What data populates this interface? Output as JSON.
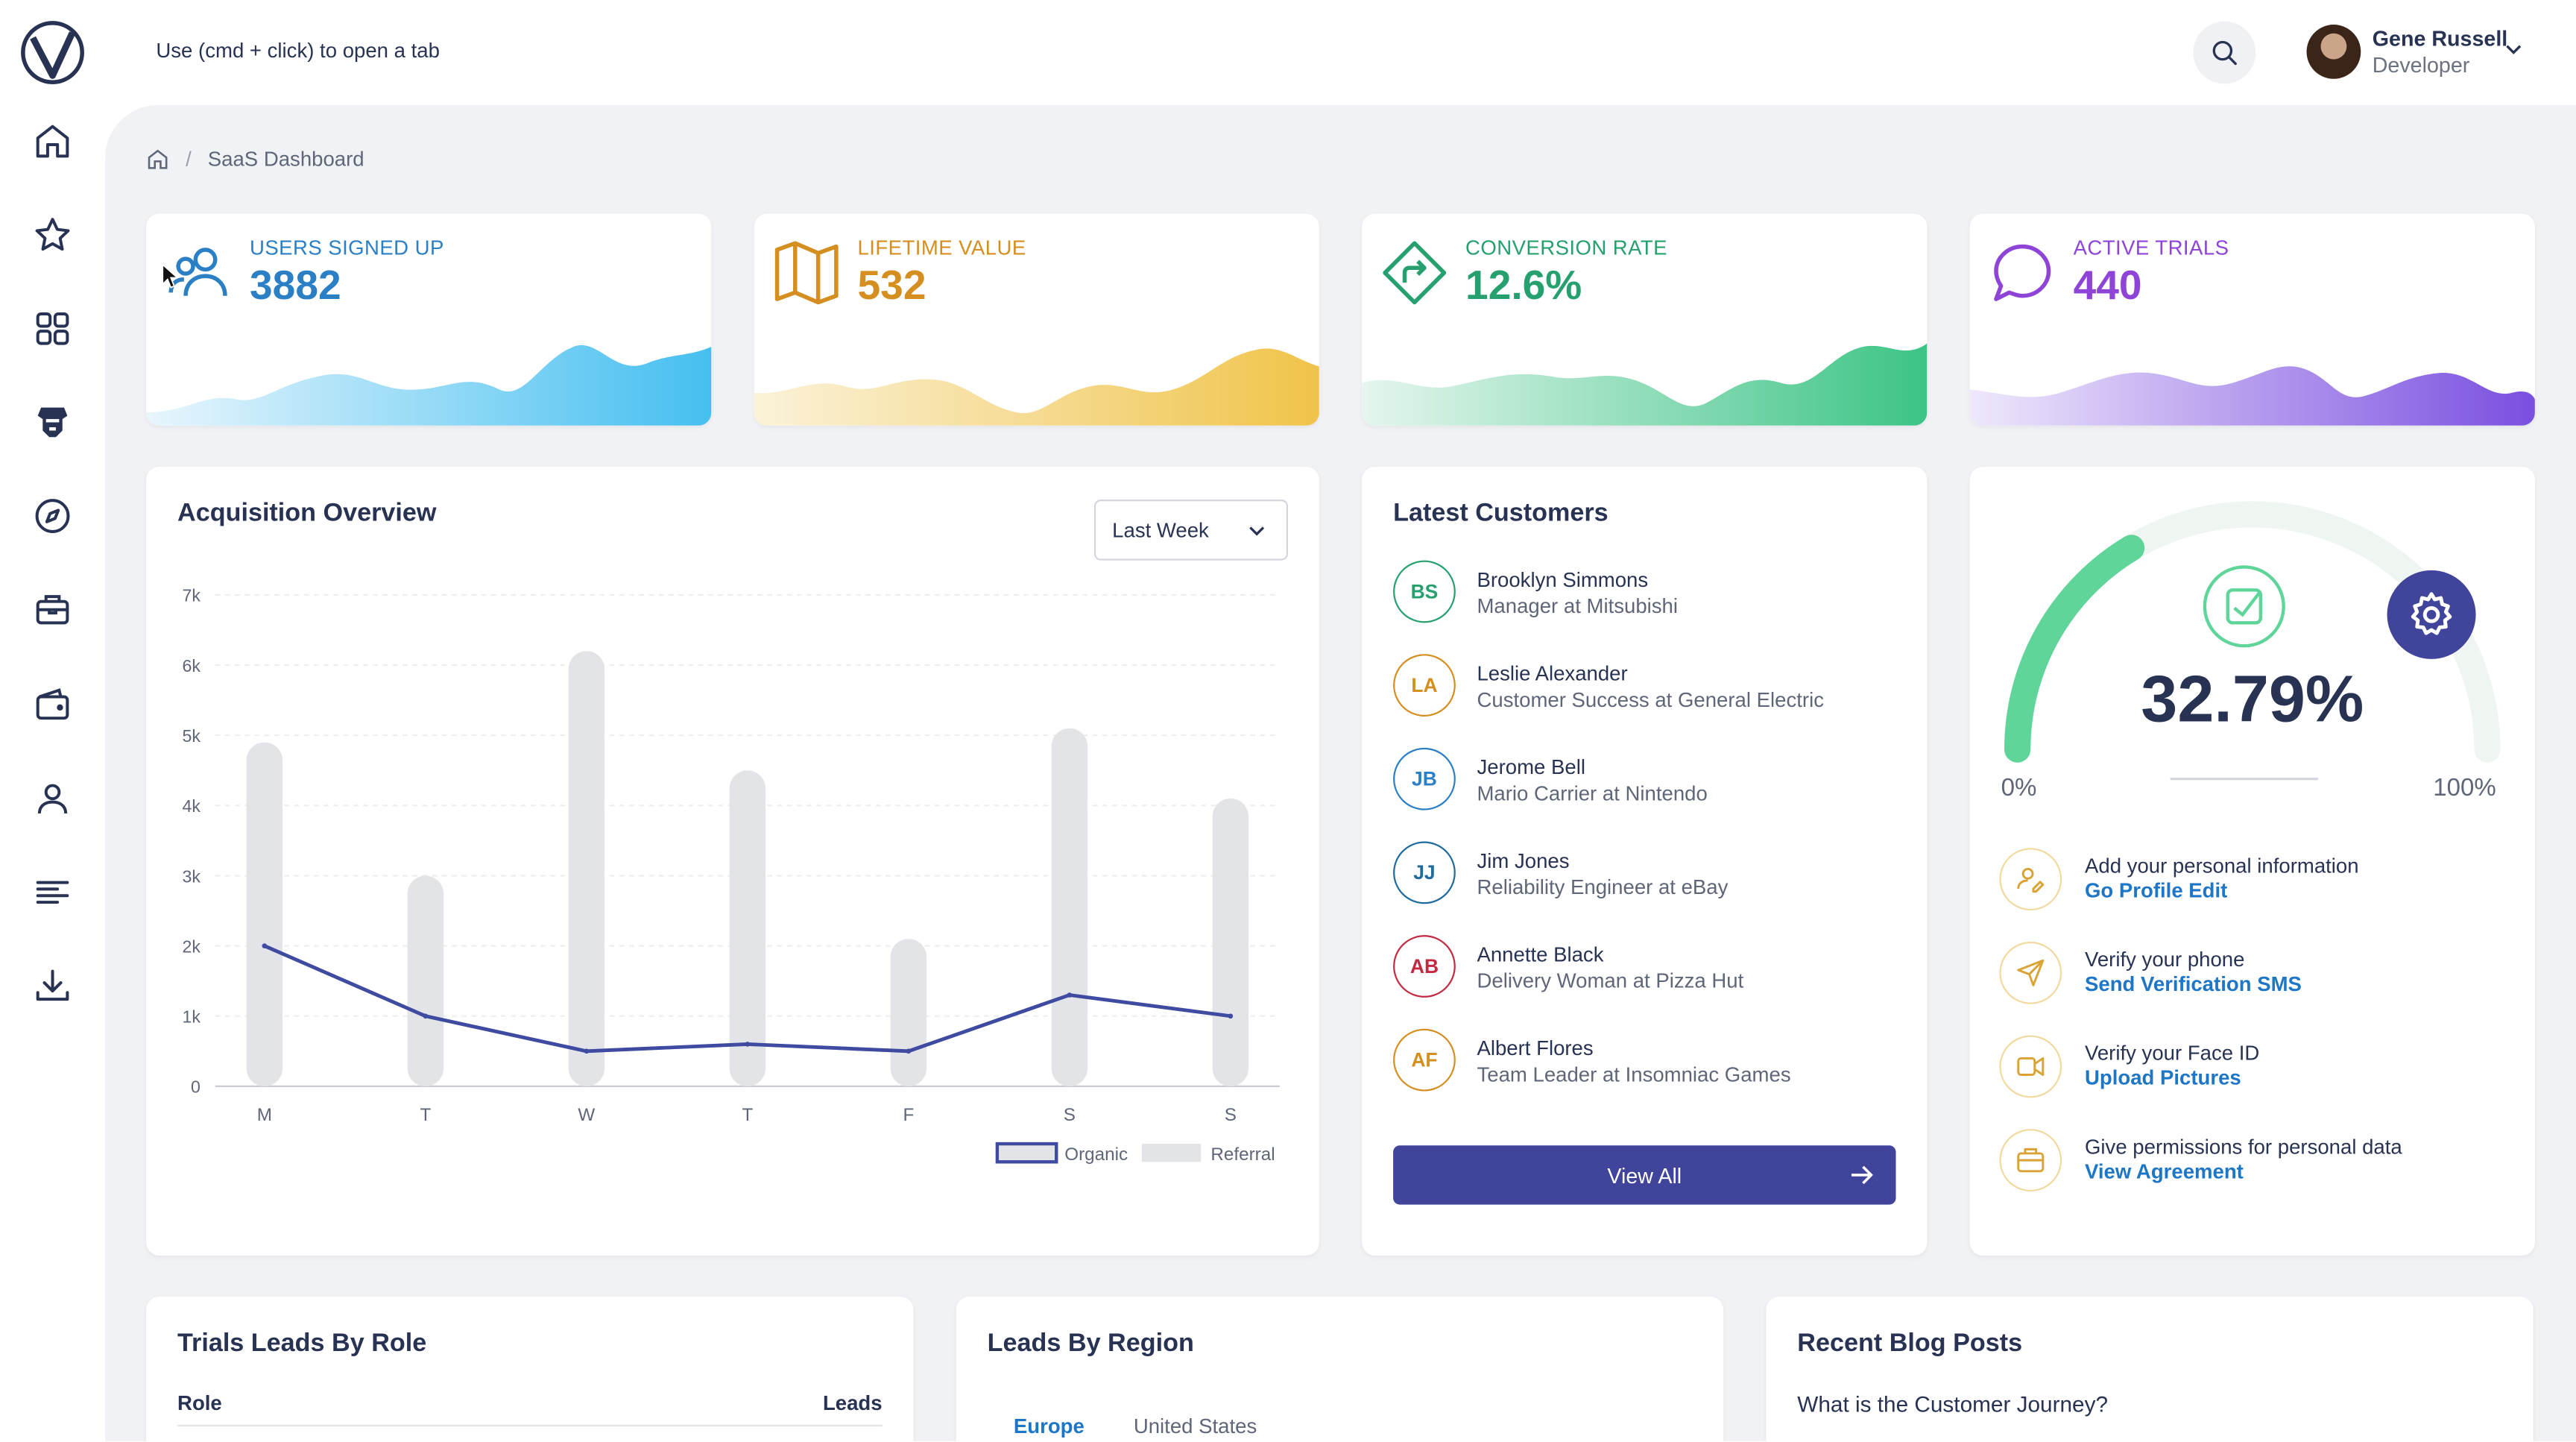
{
  "app": {
    "hint": "Use (cmd + click) to open a tab",
    "logo_icon": "vuero-logo-icon"
  },
  "sidebar": {
    "items": [
      {
        "icon": "home-icon"
      },
      {
        "icon": "star-icon"
      },
      {
        "icon": "grid-icon"
      },
      {
        "icon": "robot-icon"
      },
      {
        "icon": "compass-icon"
      },
      {
        "icon": "briefcase-icon"
      },
      {
        "icon": "wallet-icon"
      },
      {
        "icon": "user-icon"
      },
      {
        "icon": "align-left-icon"
      },
      {
        "icon": "download-icon"
      }
    ]
  },
  "header": {
    "user_name": "Gene Russell",
    "user_role": "Developer"
  },
  "breadcrumb": {
    "current": "SaaS Dashboard",
    "separator": "/"
  },
  "stats": [
    {
      "label": "USERS SIGNED UP",
      "value": "3882",
      "color": "#2b7fc4",
      "icon": "users-icon"
    },
    {
      "label": "LIFETIME VALUE",
      "value": "532",
      "color": "#d48f20",
      "icon": "map-icon"
    },
    {
      "label": "CONVERSION RATE",
      "value": "12.6%",
      "color": "#27a070",
      "icon": "directions-icon"
    },
    {
      "label": "ACTIVE TRIALS",
      "value": "440",
      "color": "#8e44d6",
      "icon": "message-circle-icon"
    }
  ],
  "acquisition": {
    "title": "Acquisition Overview",
    "period": "Last Week"
  },
  "chart_data": {
    "type": "bar",
    "categories": [
      "M",
      "T",
      "W",
      "T",
      "F",
      "S",
      "S"
    ],
    "series": [
      {
        "name": "Organic",
        "type": "line",
        "values": [
          2000,
          1000,
          500,
          600,
          500,
          1300,
          1000
        ],
        "color": "#3f4aa1"
      },
      {
        "name": "Referral",
        "type": "bar",
        "values": [
          4900,
          3000,
          6200,
          4500,
          2100,
          5100,
          4100
        ],
        "color": "#e3e4e8"
      }
    ],
    "y_ticks": [
      "0",
      "1k",
      "2k",
      "3k",
      "4k",
      "5k",
      "6k",
      "7k"
    ],
    "ylim": [
      0,
      7000
    ],
    "grid": true,
    "legend": "bottom-right"
  },
  "customers": {
    "title": "Latest Customers",
    "items": [
      {
        "initials": "BS",
        "name": "Brooklyn Simmons",
        "role": "Manager at Mitsubishi",
        "color": "#27a070"
      },
      {
        "initials": "LA",
        "name": "Leslie Alexander",
        "role": "Customer Success at General Electric",
        "color": "#d48f20"
      },
      {
        "initials": "JB",
        "name": "Jerome Bell",
        "role": "Mario Carrier at Nintendo",
        "color": "#2b7fc4"
      },
      {
        "initials": "JJ",
        "name": "Jim Jones",
        "role": "Reliability Engineer at eBay",
        "color": "#1f6b9c"
      },
      {
        "initials": "AB",
        "name": "Annette Black",
        "role": "Delivery Woman at Pizza Hut",
        "color": "#c22a42"
      },
      {
        "initials": "AF",
        "name": "Albert Flores",
        "role": "Team Leader at Insomniac Games",
        "color": "#d48f20"
      }
    ],
    "view_all": "View All"
  },
  "gauge": {
    "value_text": "32.79%",
    "progress": 0.3279,
    "min_label": "0%",
    "max_label": "100%",
    "tasks": [
      {
        "text": "Add your personal information",
        "link": "Go Profile Edit",
        "icon": "user-edit-icon"
      },
      {
        "text": "Verify your phone",
        "link": "Send Verification SMS",
        "icon": "send-icon"
      },
      {
        "text": "Verify your Face ID",
        "link": "Upload Pictures",
        "icon": "video-icon"
      },
      {
        "text": "Give permissions for personal data",
        "link": "View Agreement",
        "icon": "briefcase-icon"
      }
    ]
  },
  "trials": {
    "title": "Trials Leads By Role",
    "col_role": "Role",
    "col_leads": "Leads"
  },
  "regions": {
    "title": "Leads By Region",
    "tabs": [
      "Europe",
      "United States"
    ]
  },
  "blog": {
    "title": "Recent Blog Posts",
    "first_post": "What is the Customer Journey?"
  }
}
